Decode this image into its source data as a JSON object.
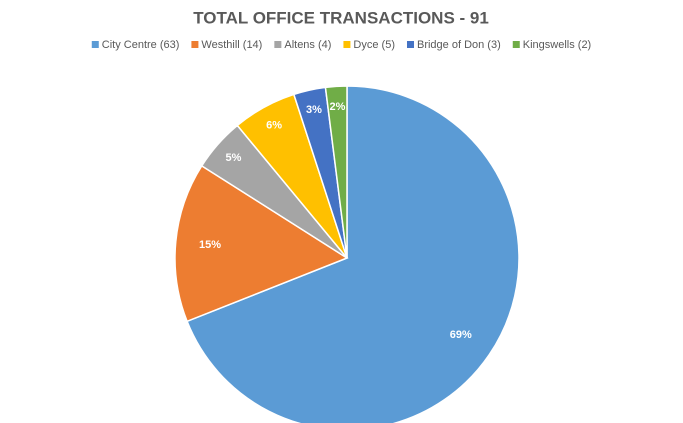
{
  "chart_data": {
    "type": "pie",
    "title": "TOTAL OFFICE TRANSACTIONS - 91",
    "categories": [
      "City Centre (63)",
      "Westhill (14)",
      "Altens (4)",
      "Dyce (5)",
      "Bridge of Don (3)",
      "Kingswells (2)"
    ],
    "values": [
      69,
      15,
      5,
      6,
      3,
      2
    ],
    "value_labels": [
      "69%",
      "15%",
      "5%",
      "6%",
      "3%",
      "2%"
    ],
    "colors": [
      "#5b9bd5",
      "#ed7d31",
      "#a5a5a5",
      "#ffc000",
      "#4472c4",
      "#70ad47"
    ],
    "legend": "top"
  }
}
